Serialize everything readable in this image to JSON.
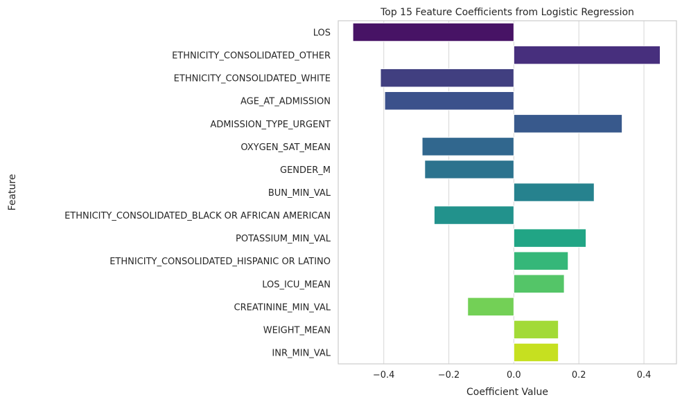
{
  "chart_data": {
    "type": "bar",
    "orientation": "horizontal",
    "title": "Top 15 Feature Coefficients from Logistic Regression",
    "xlabel": "Coefficient Value",
    "ylabel": "Feature",
    "xlim": [
      -0.54,
      0.5
    ],
    "xticks": [
      -0.4,
      -0.2,
      0.0,
      0.2,
      0.4
    ],
    "xtick_labels": [
      "−0.4",
      "−0.2",
      "0.0",
      "0.2",
      "0.4"
    ],
    "grid": "vertical",
    "palette": "viridis",
    "categories": [
      "LOS",
      "ETHNICITY_CONSOLIDATED_OTHER",
      "ETHNICITY_CONSOLIDATED_WHITE",
      "AGE_AT_ADMISSION",
      "ADMISSION_TYPE_URGENT",
      "OXYGEN_SAT_MEAN",
      "GENDER_M",
      "BUN_MIN_VAL",
      "ETHNICITY_CONSOLIDATED_BLACK OR AFRICAN AMERICAN",
      "POTASSIUM_MIN_VAL",
      "ETHNICITY_CONSOLIDATED_HISPANIC OR LATINO",
      "LOS_ICU_MEAN",
      "CREATININE_MIN_VAL",
      "WEIGHT_MEAN",
      "INR_MIN_VAL"
    ],
    "values": [
      -0.495,
      0.45,
      -0.41,
      -0.397,
      0.333,
      -0.282,
      -0.274,
      0.247,
      -0.245,
      0.222,
      0.167,
      0.155,
      -0.142,
      0.137,
      0.137
    ],
    "colors": [
      "#471365",
      "#472f7d",
      "#413f80",
      "#3b518b",
      "#38598c",
      "#31678e",
      "#2c738e",
      "#26828e",
      "#22928c",
      "#21a585",
      "#35b779",
      "#54c568",
      "#73d056",
      "#a2da37",
      "#c6e020"
    ]
  }
}
